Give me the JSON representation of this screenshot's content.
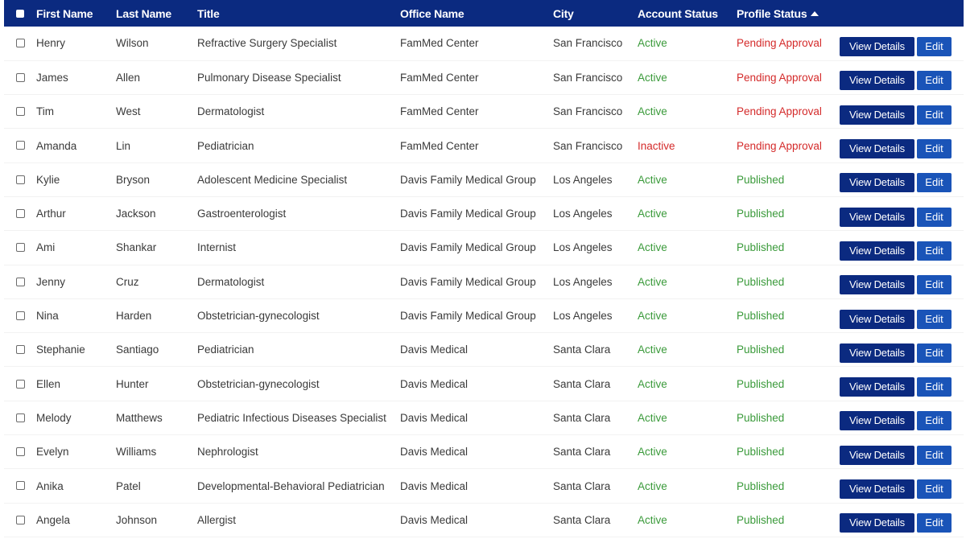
{
  "columns": {
    "first_name": "First Name",
    "last_name": "Last Name",
    "title": "Title",
    "office_name": "Office Name",
    "city": "City",
    "account_status": "Account Status",
    "profile_status": "Profile Status"
  },
  "sort": {
    "column": "profile_status",
    "direction": "ascending",
    "icon": "sort-ascending-icon"
  },
  "buttons": {
    "view": "View Details",
    "edit": "Edit"
  },
  "colors": {
    "header_bg": "#0b2a80",
    "view_button_bg": "#0b2a80",
    "edit_button_bg": "#1a54b8",
    "status_green": "#3a9a3a",
    "status_red": "#d42a2a"
  },
  "rows": [
    {
      "first_name": "Henry",
      "last_name": "Wilson",
      "title": "Refractive Surgery Specialist",
      "office_name": "FamMed Center",
      "city": "San Francisco",
      "account_status": "Active",
      "profile_status": "Pending Approval"
    },
    {
      "first_name": "James",
      "last_name": "Allen",
      "title": "Pulmonary Disease Specialist",
      "office_name": "FamMed Center",
      "city": "San Francisco",
      "account_status": "Active",
      "profile_status": "Pending Approval"
    },
    {
      "first_name": "Tim",
      "last_name": "West",
      "title": "Dermatologist",
      "office_name": "FamMed Center",
      "city": "San Francisco",
      "account_status": "Active",
      "profile_status": "Pending Approval"
    },
    {
      "first_name": "Amanda",
      "last_name": "Lin",
      "title": "Pediatrician",
      "office_name": "FamMed Center",
      "city": "San Francisco",
      "account_status": "Inactive",
      "profile_status": "Pending Approval"
    },
    {
      "first_name": "Kylie",
      "last_name": "Bryson",
      "title": "Adolescent Medicine Specialist",
      "office_name": "Davis Family Medical Group",
      "city": "Los Angeles",
      "account_status": "Active",
      "profile_status": "Published"
    },
    {
      "first_name": "Arthur",
      "last_name": "Jackson",
      "title": "Gastroenterologist",
      "office_name": "Davis Family Medical Group",
      "city": "Los Angeles",
      "account_status": "Active",
      "profile_status": "Published"
    },
    {
      "first_name": "Ami",
      "last_name": "Shankar",
      "title": "Internist",
      "office_name": "Davis Family Medical Group",
      "city": "Los Angeles",
      "account_status": "Active",
      "profile_status": "Published"
    },
    {
      "first_name": "Jenny",
      "last_name": "Cruz",
      "title": "Dermatologist",
      "office_name": "Davis Family Medical Group",
      "city": "Los Angeles",
      "account_status": "Active",
      "profile_status": "Published"
    },
    {
      "first_name": "Nina",
      "last_name": "Harden",
      "title": "Obstetrician-gynecologist",
      "office_name": "Davis Family Medical Group",
      "city": "Los Angeles",
      "account_status": "Active",
      "profile_status": "Published"
    },
    {
      "first_name": "Stephanie",
      "last_name": "Santiago",
      "title": "Pediatrician",
      "office_name": "Davis Medical",
      "city": "Santa Clara",
      "account_status": "Active",
      "profile_status": "Published"
    },
    {
      "first_name": "Ellen",
      "last_name": "Hunter",
      "title": "Obstetrician-gynecologist",
      "office_name": "Davis Medical",
      "city": "Santa Clara",
      "account_status": "Active",
      "profile_status": "Published"
    },
    {
      "first_name": "Melody",
      "last_name": "Matthews",
      "title": "Pediatric Infectious Diseases Specialist",
      "office_name": "Davis Medical",
      "city": "Santa Clara",
      "account_status": "Active",
      "profile_status": "Published"
    },
    {
      "first_name": "Evelyn",
      "last_name": "Williams",
      "title": "Nephrologist",
      "office_name": "Davis Medical",
      "city": "Santa Clara",
      "account_status": "Active",
      "profile_status": "Published"
    },
    {
      "first_name": "Anika",
      "last_name": "Patel",
      "title": "Developmental-Behavioral Pediatrician",
      "office_name": "Davis Medical",
      "city": "Santa Clara",
      "account_status": "Active",
      "profile_status": "Published"
    },
    {
      "first_name": "Angela",
      "last_name": "Johnson",
      "title": "Allergist",
      "office_name": "Davis Medical",
      "city": "Santa Clara",
      "account_status": "Active",
      "profile_status": "Published"
    }
  ]
}
